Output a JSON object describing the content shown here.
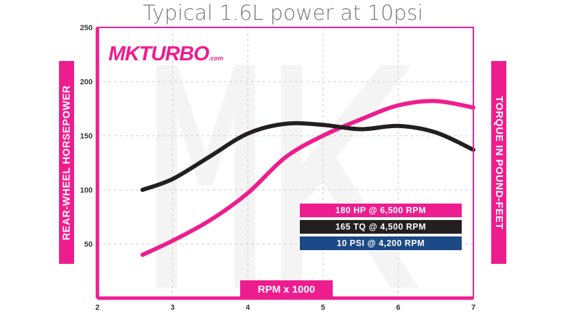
{
  "colors": {
    "accent": "#ee1d8f",
    "torque": "#231f20",
    "boost": "#1c4a86",
    "axis": "#ee1d8f",
    "grid": "#cccccc"
  },
  "logo": {
    "main": "MKTURBO",
    "suffix": ".com"
  },
  "chart_data": {
    "type": "line",
    "title": "Typical 1.6L power at 10psi",
    "xlabel": "RPM x 1000",
    "ylabel": "REAR-WHEEL HORSEPOWER",
    "ylabel_right": "TORQUE IN POUND-FEET",
    "xlim": [
      2,
      7
    ],
    "ylim": [
      0,
      250
    ],
    "xticks": [
      2,
      3,
      4,
      5,
      6,
      7
    ],
    "yticks": [
      50,
      100,
      150,
      200,
      250
    ],
    "grid": true,
    "legend": [
      {
        "label": "180 HP @ 6,500 RPM",
        "color": "#ee1d8f"
      },
      {
        "label": "165 TQ @ 4,500 RPM",
        "color": "#231f20"
      },
      {
        "label": "10 PSI @ 4,200 RPM",
        "color": "#1c4a86"
      }
    ],
    "series": [
      {
        "color": "#ee1d8f",
        "x": [
          2.6,
          3.0,
          3.5,
          4.0,
          4.5,
          5.0,
          5.5,
          6.0,
          6.5,
          7.0
        ],
        "values": [
          40,
          53,
          72,
          97,
          130,
          150,
          165,
          178,
          182,
          176
        ]
      },
      {
        "color": "#231f20",
        "x": [
          2.6,
          3.0,
          3.5,
          4.0,
          4.5,
          5.0,
          5.5,
          6.0,
          6.5,
          7.0
        ],
        "values": [
          100,
          110,
          131,
          152,
          161,
          160,
          156,
          159,
          153,
          137
        ]
      }
    ]
  }
}
